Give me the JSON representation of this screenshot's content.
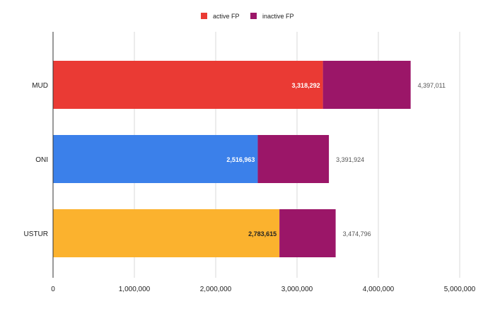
{
  "chart_data": {
    "type": "bar",
    "orientation": "horizontal",
    "stacked": true,
    "categories": [
      "MUD",
      "ONI",
      "USTUR"
    ],
    "series": [
      {
        "name": "active FP",
        "values": [
          3318292,
          2516963,
          2783615
        ],
        "colors": [
          "#ea3a34",
          "#3b80ea",
          "#fbb22e"
        ]
      },
      {
        "name": "inactive FP",
        "values": [
          1078719,
          874961,
          691181
        ],
        "colors": [
          "#9b1668",
          "#9b1668",
          "#9b1668"
        ]
      }
    ],
    "inner_labels": [
      "3,318,292",
      "2,516,963",
      "2,783,615"
    ],
    "total_labels": [
      "4,397,011",
      "3,391,924",
      "3,474,796"
    ],
    "xlim": [
      0,
      5000000
    ],
    "xticks": [
      0,
      1000000,
      2000000,
      3000000,
      4000000,
      5000000
    ],
    "xtick_labels": [
      "0",
      "1,000,000",
      "2,000,000",
      "3,000,000",
      "4,000,000",
      "5,000,000"
    ],
    "legend": [
      {
        "label": "active FP",
        "color": "#ea3a34"
      },
      {
        "label": "inactive FP",
        "color": "#9b1668"
      }
    ],
    "legend_position": "top-center",
    "grid": true,
    "title": "",
    "xlabel": "",
    "ylabel": ""
  }
}
